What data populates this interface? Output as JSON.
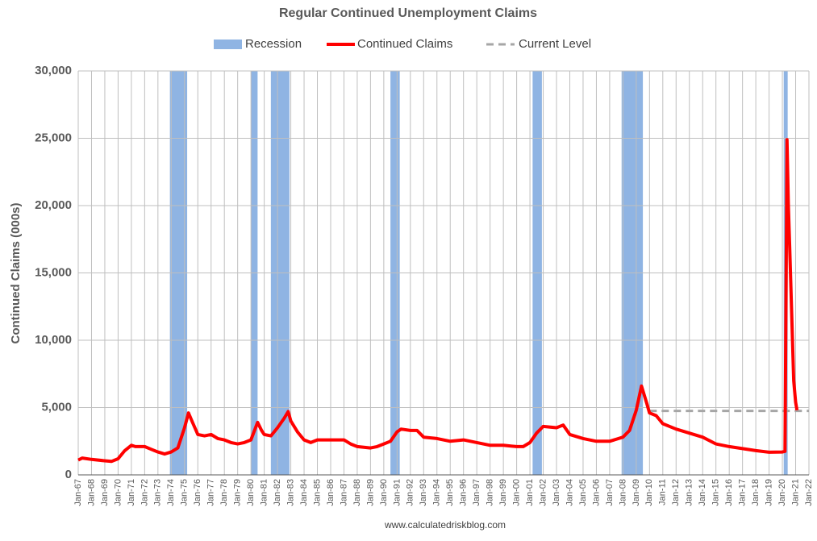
{
  "chart_data": {
    "type": "line",
    "title": "Regular Continued Unemployment Claims",
    "y_label": "Continued Claims (000s)",
    "footer": "www.calculatedriskblog.com",
    "grid": true,
    "legend": "top",
    "xlim": [
      1967,
      2022
    ],
    "ylim": [
      0,
      30000
    ],
    "yticks": [
      0,
      {
        "value": 5000,
        "label": "5,000"
      },
      {
        "value": 10000,
        "label": "10,000"
      },
      {
        "value": 15000,
        "label": "15,000"
      },
      {
        "value": 20000,
        "label": "20,000"
      },
      {
        "value": 25000,
        "label": "25,000"
      },
      {
        "value": 30000,
        "label": "30,000"
      }
    ],
    "xticks": [
      {
        "value": 1967,
        "label": "Jan-67"
      },
      {
        "value": 1968,
        "label": "Jan-68"
      },
      {
        "value": 1969,
        "label": "Jan-69"
      },
      {
        "value": 1970,
        "label": "Jan-70"
      },
      {
        "value": 1971,
        "label": "Jan-71"
      },
      {
        "value": 1972,
        "label": "Jan-72"
      },
      {
        "value": 1973,
        "label": "Jan-73"
      },
      {
        "value": 1974,
        "label": "Jan-74"
      },
      {
        "value": 1975,
        "label": "Jan-75"
      },
      {
        "value": 1976,
        "label": "Jan-76"
      },
      {
        "value": 1977,
        "label": "Jan-77"
      },
      {
        "value": 1978,
        "label": "Jan-78"
      },
      {
        "value": 1979,
        "label": "Jan-79"
      },
      {
        "value": 1980,
        "label": "Jan-80"
      },
      {
        "value": 1981,
        "label": "Jan-81"
      },
      {
        "value": 1982,
        "label": "Jan-82"
      },
      {
        "value": 1983,
        "label": "Jan-83"
      },
      {
        "value": 1984,
        "label": "Jan-84"
      },
      {
        "value": 1985,
        "label": "Jan-85"
      },
      {
        "value": 1986,
        "label": "Jan-86"
      },
      {
        "value": 1987,
        "label": "Jan-87"
      },
      {
        "value": 1988,
        "label": "Jan-88"
      },
      {
        "value": 1989,
        "label": "Jan-89"
      },
      {
        "value": 1990,
        "label": "Jan-90"
      },
      {
        "value": 1991,
        "label": "Jan-91"
      },
      {
        "value": 1992,
        "label": "Jan-92"
      },
      {
        "value": 1993,
        "label": "Jan-93"
      },
      {
        "value": 1994,
        "label": "Jan-94"
      },
      {
        "value": 1995,
        "label": "Jan-95"
      },
      {
        "value": 1996,
        "label": "Jan-96"
      },
      {
        "value": 1997,
        "label": "Jan-97"
      },
      {
        "value": 1998,
        "label": "Jan-98"
      },
      {
        "value": 1999,
        "label": "Jan-99"
      },
      {
        "value": 2000,
        "label": "Jan-00"
      },
      {
        "value": 2001,
        "label": "Jan-01"
      },
      {
        "value": 2002,
        "label": "Jan-02"
      },
      {
        "value": 2003,
        "label": "Jan-03"
      },
      {
        "value": 2004,
        "label": "Jan-04"
      },
      {
        "value": 2005,
        "label": "Jan-05"
      },
      {
        "value": 2006,
        "label": "Jan-06"
      },
      {
        "value": 2007,
        "label": "Jan-07"
      },
      {
        "value": 2008,
        "label": "Jan-08"
      },
      {
        "value": 2009,
        "label": "Jan-09"
      },
      {
        "value": 2010,
        "label": "Jan-10"
      },
      {
        "value": 2011,
        "label": "Jan-11"
      },
      {
        "value": 2012,
        "label": "Jan-12"
      },
      {
        "value": 2013,
        "label": "Jan-13"
      },
      {
        "value": 2014,
        "label": "Jan-14"
      },
      {
        "value": 2015,
        "label": "Jan-15"
      },
      {
        "value": 2016,
        "label": "Jan-16"
      },
      {
        "value": 2017,
        "label": "Jan-17"
      },
      {
        "value": 2018,
        "label": "Jan-18"
      },
      {
        "value": 2019,
        "label": "Jan-19"
      },
      {
        "value": 2020,
        "label": "Jan-20"
      },
      {
        "value": 2021,
        "label": "Jan-21"
      },
      {
        "value": 2022,
        "label": "Jan-22"
      }
    ],
    "recession": {
      "name": "Recession",
      "color": "#8fb4e3",
      "ranges": [
        [
          1973.9,
          1975.2
        ],
        [
          1980.0,
          1980.5
        ],
        [
          1981.5,
          1982.9
        ],
        [
          1990.5,
          1991.2
        ],
        [
          2001.2,
          2001.9
        ],
        [
          2007.9,
          2009.5
        ],
        [
          2020.1,
          2020.4
        ]
      ]
    },
    "series": [
      {
        "name": "Continued Claims",
        "color": "#ff0000",
        "x": [
          1967.0,
          1967.3,
          1968,
          1969,
          1969.5,
          1970,
          1970.5,
          1971,
          1971.3,
          1972,
          1972.5,
          1973,
          1973.5,
          1974,
          1974.5,
          1975,
          1975.3,
          1975.6,
          1976,
          1976.5,
          1977,
          1977.5,
          1978,
          1978.5,
          1979,
          1979.5,
          1980,
          1980.5,
          1980.8,
          1981,
          1981.5,
          1982,
          1982.5,
          1982.8,
          1983,
          1983.5,
          1984,
          1984.5,
          1985,
          1986,
          1987,
          1987.5,
          1988,
          1989,
          1989.5,
          1990,
          1990.5,
          1991,
          1991.3,
          1992,
          1992.5,
          1993,
          1994,
          1995,
          1996,
          1997,
          1998,
          1999,
          2000,
          2000.5,
          2001,
          2001.5,
          2002,
          2003,
          2003.5,
          2004,
          2005,
          2006,
          2007,
          2008,
          2008.5,
          2009,
          2009.4,
          2009.8,
          2010,
          2010.5,
          2011,
          2012,
          2013,
          2014,
          2015,
          2016,
          2017,
          2018,
          2019,
          2020,
          2020.2,
          2020.3,
          2020.35,
          2020.45,
          2020.55,
          2020.7,
          2020.85,
          2021,
          2021.1
        ],
        "values": [
          1100,
          1250,
          1150,
          1050,
          1000,
          1200,
          1800,
          2200,
          2100,
          2100,
          1900,
          1700,
          1550,
          1700,
          2000,
          3500,
          4600,
          3900,
          3000,
          2900,
          3000,
          2700,
          2600,
          2400,
          2300,
          2400,
          2600,
          3900,
          3300,
          3000,
          2900,
          3500,
          4200,
          4700,
          4000,
          3200,
          2600,
          2400,
          2600,
          2600,
          2600,
          2300,
          2100,
          2000,
          2100,
          2300,
          2500,
          3200,
          3400,
          3300,
          3300,
          2800,
          2700,
          2500,
          2600,
          2400,
          2200,
          2200,
          2100,
          2100,
          2400,
          3100,
          3600,
          3500,
          3700,
          3000,
          2700,
          2500,
          2500,
          2800,
          3300,
          4800,
          6600,
          5300,
          4600,
          4400,
          3800,
          3400,
          3100,
          2800,
          2300,
          2100,
          1950,
          1800,
          1680,
          1700,
          1750,
          17000,
          24900,
          20000,
          17000,
          12000,
          7000,
          5400,
          4800
        ]
      }
    ],
    "current_level": {
      "name": "Current Level",
      "color": "#a6a6a6",
      "value": 4750,
      "x": [
        2010,
        2022
      ]
    }
  }
}
